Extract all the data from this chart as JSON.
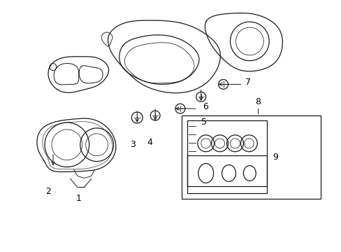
{
  "background_color": "#ffffff",
  "line_color": "#1a1a1a",
  "text_color": "#000000",
  "figsize": [
    4.89,
    3.6
  ],
  "dpi": 100,
  "lw": 0.9
}
